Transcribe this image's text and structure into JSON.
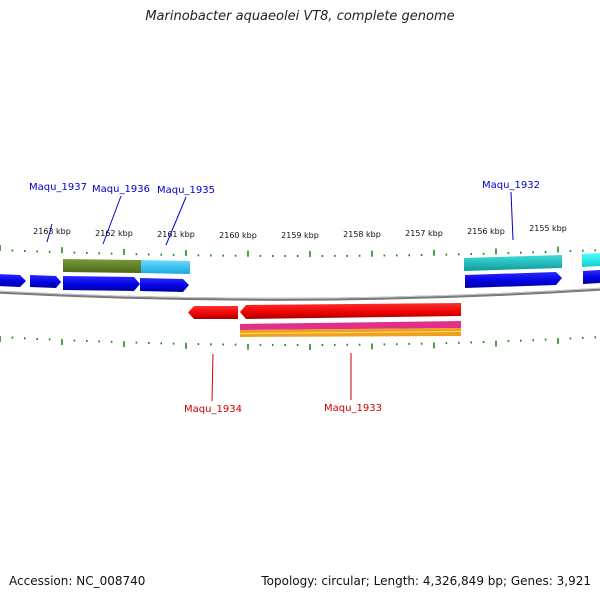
{
  "title": "Marinobacter aquaeolei VT8, complete genome",
  "footer": {
    "accession": "Accession: NC_008740",
    "summary": "Topology: circular; Length: 4,326,849 bp; Genes: 3,921"
  },
  "colors": {
    "forward_label": "#0000cc",
    "reverse_label": "#cc0000",
    "tick": "#228b22",
    "backbone": "#808080",
    "cds_forward": "#0000ee",
    "cds_reverse": "#ee0000"
  },
  "ruler_labels": [
    "2163 kbp",
    "2162 kbp",
    "2161 kbp",
    "2160 kbp",
    "2159 kbp",
    "2158 kbp",
    "2157 kbp",
    "2156 kbp",
    "2155 kbp"
  ],
  "gene_labels": {
    "forward": [
      "Maqu_1937",
      "Maqu_1936",
      "Maqu_1935",
      "Maqu_1932"
    ],
    "reverse": [
      "Maqu_1934",
      "Maqu_1933"
    ]
  }
}
